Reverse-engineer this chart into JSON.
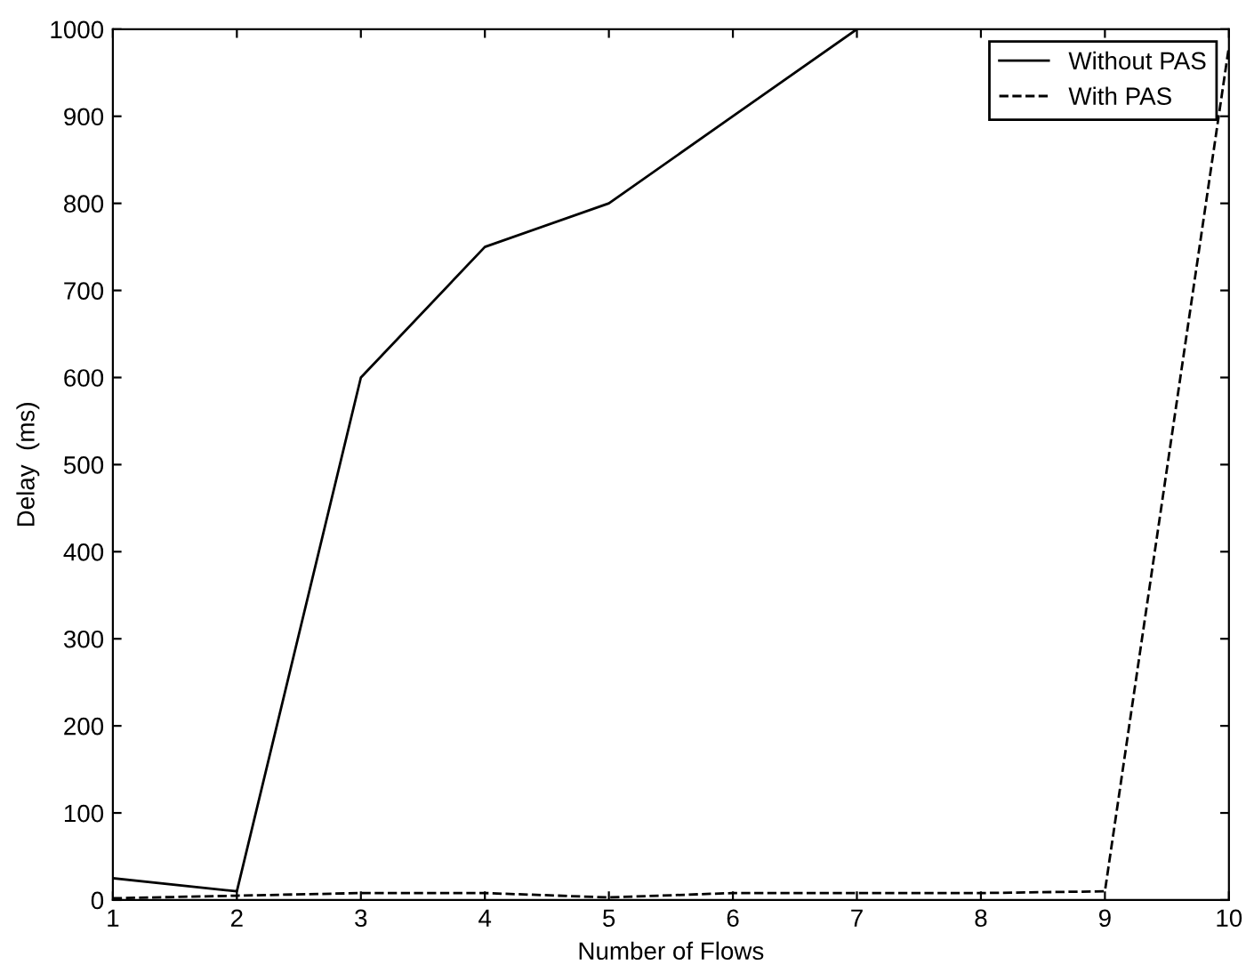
{
  "chart_data": {
    "type": "line",
    "xlabel": "Number of Flows",
    "ylabel": "Delay  (ms)",
    "x": [
      1,
      2,
      3,
      4,
      5,
      6,
      7,
      8,
      9,
      10
    ],
    "series": [
      {
        "name": "Without PAS",
        "color": "#000000",
        "line_style": "solid",
        "values": [
          25,
          10,
          600,
          750,
          800,
          900,
          1000,
          null,
          null,
          null
        ]
      },
      {
        "name": "With PAS",
        "color": "#000000",
        "line_style": "dashed",
        "values": [
          2,
          5,
          8,
          8,
          3,
          8,
          8,
          8,
          10,
          980
        ]
      }
    ],
    "xlim": [
      1,
      10
    ],
    "ylim": [
      0,
      1000
    ],
    "xticks": [
      1,
      2,
      3,
      4,
      5,
      6,
      7,
      8,
      9,
      10
    ],
    "yticks": [
      0,
      100,
      200,
      300,
      400,
      500,
      600,
      700,
      800,
      900,
      1000
    ],
    "legend": "top right",
    "grid": false
  }
}
